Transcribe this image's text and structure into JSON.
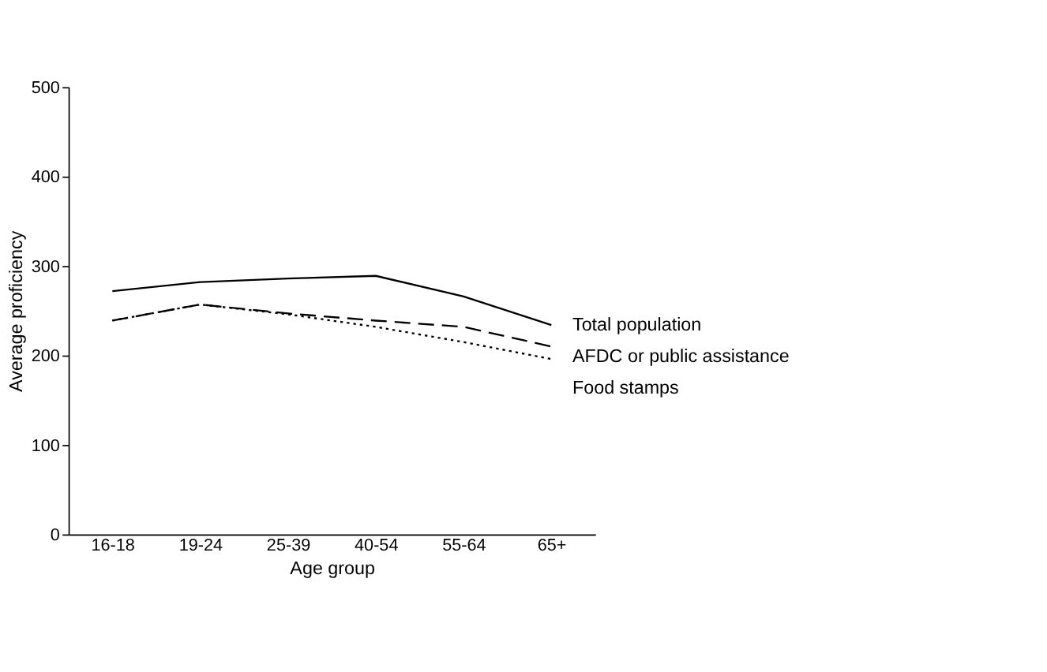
{
  "chart_data": {
    "type": "line",
    "xlabel": "Age group",
    "ylabel": "Average proficiency",
    "categories": [
      "16-18",
      "19-24",
      "25-39",
      "40-54",
      "55-64",
      "65+"
    ],
    "series": [
      {
        "name": "Total population",
        "color": "#000000",
        "line_style": "solid",
        "values": [
          272,
          282,
          286,
          289,
          266,
          234
        ]
      },
      {
        "name": "AFDC or public assistance",
        "color": "#000000",
        "line_style": "dashed",
        "values": [
          239,
          257,
          247,
          239,
          232,
          210
        ]
      },
      {
        "name": "Food stamps",
        "color": "#000000",
        "line_style": "dotted",
        "values": [
          239,
          257,
          246,
          232,
          215,
          196
        ]
      }
    ],
    "ylim": [
      0,
      500
    ],
    "yticks": [
      0,
      100,
      200,
      300,
      400,
      500
    ],
    "grid": false,
    "legend": false,
    "marker": "none"
  }
}
